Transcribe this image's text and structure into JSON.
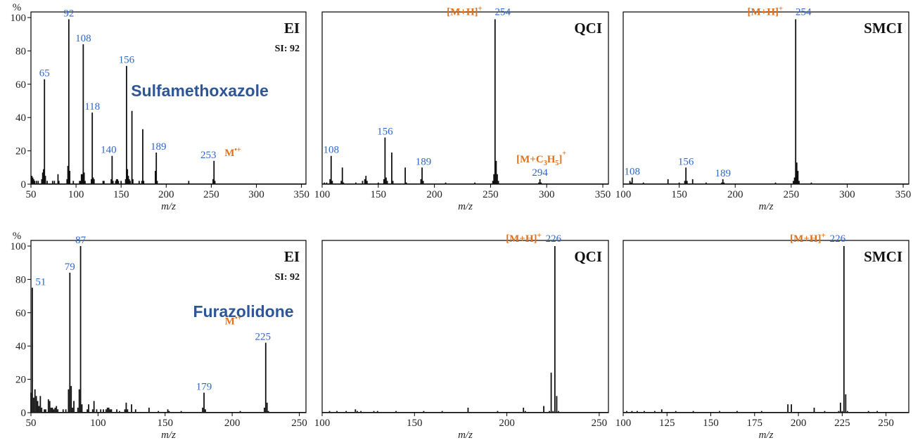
{
  "colors": {
    "peak_label": "#2f66c9",
    "annotation": "#e0701b",
    "compound": "#2e5596",
    "bar": "#111111"
  },
  "chart_data": [
    {
      "type": "bar",
      "compound": "Sulfamethoxazole",
      "mode": "EI",
      "si": "SI: 92",
      "xlabel": "m/z",
      "ylabel": "%",
      "xlim": [
        50,
        355
      ],
      "ylim": [
        0,
        100
      ],
      "xticks": [
        50,
        100,
        150,
        200,
        250,
        300,
        350
      ],
      "yticks": [
        0,
        20,
        40,
        60,
        80,
        100
      ],
      "peaks": [
        [
          51,
          5
        ],
        [
          52,
          4
        ],
        [
          53,
          3
        ],
        [
          54,
          2
        ],
        [
          56,
          2
        ],
        [
          58,
          2
        ],
        [
          62,
          3
        ],
        [
          63,
          7
        ],
        [
          64,
          9
        ],
        [
          65,
          63
        ],
        [
          66,
          5
        ],
        [
          68,
          2
        ],
        [
          74,
          2
        ],
        [
          76,
          2
        ],
        [
          80,
          6
        ],
        [
          81,
          2
        ],
        [
          90,
          3
        ],
        [
          91,
          11
        ],
        [
          92,
          99
        ],
        [
          93,
          8
        ],
        [
          97,
          2
        ],
        [
          104,
          2
        ],
        [
          105,
          2
        ],
        [
          106,
          6
        ],
        [
          107,
          6
        ],
        [
          108,
          84
        ],
        [
          109,
          7
        ],
        [
          110,
          2
        ],
        [
          117,
          3
        ],
        [
          118,
          43
        ],
        [
          119,
          4
        ],
        [
          120,
          3
        ],
        [
          130,
          2
        ],
        [
          131,
          2
        ],
        [
          139,
          3
        ],
        [
          140,
          17
        ],
        [
          141,
          2
        ],
        [
          144,
          2
        ],
        [
          145,
          3
        ],
        [
          146,
          3
        ],
        [
          147,
          2
        ],
        [
          150,
          2
        ],
        [
          155,
          3
        ],
        [
          156,
          71
        ],
        [
          157,
          9
        ],
        [
          158,
          5
        ],
        [
          159,
          3
        ],
        [
          160,
          2
        ],
        [
          162,
          44
        ],
        [
          163,
          3
        ],
        [
          170,
          2
        ],
        [
          173,
          2
        ],
        [
          174,
          33
        ],
        [
          175,
          2
        ],
        [
          188,
          8
        ],
        [
          189,
          19
        ],
        [
          190,
          2
        ],
        [
          225,
          2
        ],
        [
          252,
          3
        ],
        [
          253,
          14
        ],
        [
          254,
          2
        ]
      ],
      "labels": [
        {
          "x": 65,
          "t": "65"
        },
        {
          "x": 92,
          "t": "92"
        },
        {
          "x": 108,
          "t": "108"
        },
        {
          "x": 118,
          "t": "118"
        },
        {
          "x": 140,
          "t": "140"
        },
        {
          "x": 156,
          "t": "156"
        },
        {
          "x": 189,
          "t": "189"
        },
        {
          "x": 253,
          "t": "253"
        }
      ],
      "annotations": [
        "M",
        "•+"
      ]
    },
    {
      "type": "bar",
      "mode": "QCI",
      "xlabel": "m/z",
      "xlim": [
        100,
        355
      ],
      "ylim": [
        0,
        100
      ],
      "xticks": [
        100,
        150,
        200,
        250,
        300,
        350
      ],
      "peaks": [
        [
          102,
          1
        ],
        [
          104,
          1
        ],
        [
          107,
          3
        ],
        [
          108,
          17
        ],
        [
          109,
          2
        ],
        [
          117,
          2
        ],
        [
          118,
          10
        ],
        [
          119,
          1
        ],
        [
          130,
          1
        ],
        [
          136,
          2
        ],
        [
          138,
          3
        ],
        [
          139,
          5
        ],
        [
          140,
          2
        ],
        [
          150,
          1
        ],
        [
          155,
          3
        ],
        [
          156,
          28
        ],
        [
          157,
          4
        ],
        [
          158,
          2
        ],
        [
          162,
          19
        ],
        [
          163,
          2
        ],
        [
          174,
          10
        ],
        [
          175,
          1
        ],
        [
          188,
          3
        ],
        [
          189,
          10
        ],
        [
          190,
          2
        ],
        [
          210,
          1
        ],
        [
          236,
          1
        ],
        [
          252,
          2
        ],
        [
          253,
          6
        ],
        [
          254,
          99
        ],
        [
          255,
          14
        ],
        [
          256,
          6
        ],
        [
          257,
          2
        ],
        [
          293,
          1
        ],
        [
          294,
          3
        ],
        [
          295,
          1
        ]
      ],
      "labels": [
        {
          "x": 108,
          "t": "108"
        },
        {
          "x": 156,
          "t": "156"
        },
        {
          "x": 189,
          "t": "189"
        },
        {
          "x": 254,
          "t": "254"
        },
        {
          "x": 294,
          "t": "294"
        }
      ],
      "annotations": [
        "[M+H]",
        "+",
        "[M+C",
        "3",
        "H",
        "5",
        "]",
        "+"
      ]
    },
    {
      "type": "bar",
      "mode": "SMCI",
      "xlabel": "m/z",
      "xlim": [
        100,
        355
      ],
      "ylim": [
        0,
        100
      ],
      "xticks": [
        100,
        150,
        200,
        250,
        300,
        350
      ],
      "peaks": [
        [
          106,
          2
        ],
        [
          107,
          1
        ],
        [
          108,
          4
        ],
        [
          118,
          1
        ],
        [
          140,
          3
        ],
        [
          150,
          1
        ],
        [
          155,
          2
        ],
        [
          156,
          10
        ],
        [
          157,
          2
        ],
        [
          162,
          3
        ],
        [
          174,
          1
        ],
        [
          188,
          1
        ],
        [
          189,
          3
        ],
        [
          190,
          1
        ],
        [
          236,
          1
        ],
        [
          252,
          2
        ],
        [
          253,
          4
        ],
        [
          254,
          99
        ],
        [
          255,
          13
        ],
        [
          256,
          8
        ],
        [
          257,
          2
        ],
        [
          268,
          1
        ]
      ],
      "labels": [
        {
          "x": 108,
          "t": "108"
        },
        {
          "x": 156,
          "t": "156"
        },
        {
          "x": 189,
          "t": "189"
        },
        {
          "x": 254,
          "t": "254"
        }
      ],
      "annotations": [
        "[M+H]",
        "+"
      ]
    },
    {
      "type": "bar",
      "compound": "Furazolidone",
      "mode": "EI",
      "si": "SI: 92",
      "xlabel": "m/z",
      "ylabel": "%",
      "xlim": [
        50,
        255
      ],
      "ylim": [
        0,
        100
      ],
      "xticks": [
        50,
        100,
        150,
        200,
        250
      ],
      "yticks": [
        0,
        20,
        40,
        60,
        80,
        100
      ],
      "peaks": [
        [
          50,
          12
        ],
        [
          51,
          75
        ],
        [
          52,
          9
        ],
        [
          53,
          14
        ],
        [
          54,
          10
        ],
        [
          55,
          7
        ],
        [
          56,
          4
        ],
        [
          57,
          10
        ],
        [
          58,
          3
        ],
        [
          60,
          2
        ],
        [
          61,
          2
        ],
        [
          63,
          8
        ],
        [
          64,
          7
        ],
        [
          65,
          3
        ],
        [
          66,
          3
        ],
        [
          67,
          2
        ],
        [
          68,
          3
        ],
        [
          69,
          4
        ],
        [
          70,
          2
        ],
        [
          74,
          2
        ],
        [
          76,
          2
        ],
        [
          78,
          14
        ],
        [
          79,
          84
        ],
        [
          80,
          16
        ],
        [
          81,
          3
        ],
        [
          82,
          7
        ],
        [
          85,
          3
        ],
        [
          86,
          14
        ],
        [
          87,
          100
        ],
        [
          88,
          5
        ],
        [
          92,
          2
        ],
        [
          93,
          5
        ],
        [
          96,
          2
        ],
        [
          97,
          7
        ],
        [
          99,
          2
        ],
        [
          102,
          2
        ],
        [
          104,
          2
        ],
        [
          106,
          2
        ],
        [
          107,
          3
        ],
        [
          108,
          3
        ],
        [
          109,
          2
        ],
        [
          110,
          2
        ],
        [
          114,
          2
        ],
        [
          116,
          1
        ],
        [
          120,
          2
        ],
        [
          121,
          6
        ],
        [
          122,
          2
        ],
        [
          125,
          5
        ],
        [
          128,
          2
        ],
        [
          138,
          3
        ],
        [
          145,
          1
        ],
        [
          152,
          2
        ],
        [
          153,
          1
        ],
        [
          162,
          1
        ],
        [
          178,
          3
        ],
        [
          179,
          12
        ],
        [
          180,
          2
        ],
        [
          206,
          1
        ],
        [
          224,
          3
        ],
        [
          225,
          42
        ],
        [
          226,
          6
        ],
        [
          227,
          1
        ]
      ],
      "labels": [
        {
          "x": 51,
          "t": "51"
        },
        {
          "x": 79,
          "t": "79"
        },
        {
          "x": 87,
          "t": "87"
        },
        {
          "x": 179,
          "t": "179"
        },
        {
          "x": 225,
          "t": "225"
        }
      ],
      "annotations": [
        "M",
        "•+"
      ]
    },
    {
      "type": "bar",
      "mode": "QCI",
      "xlabel": "m/z",
      "xlim": [
        100,
        255
      ],
      "ylim": [
        0,
        100
      ],
      "xticks": [
        100,
        150,
        200,
        250
      ],
      "peaks": [
        [
          104,
          1
        ],
        [
          108,
          1
        ],
        [
          113,
          1
        ],
        [
          118,
          2
        ],
        [
          119,
          1
        ],
        [
          121,
          1
        ],
        [
          128,
          1
        ],
        [
          130,
          1
        ],
        [
          140,
          1
        ],
        [
          155,
          1
        ],
        [
          165,
          1
        ],
        [
          179,
          3
        ],
        [
          195,
          1
        ],
        [
          209,
          3
        ],
        [
          210,
          1
        ],
        [
          220,
          4
        ],
        [
          223,
          1
        ],
        [
          224,
          24
        ],
        [
          225,
          1
        ],
        [
          226,
          100
        ],
        [
          227,
          10
        ],
        [
          228,
          1
        ]
      ],
      "labels": [
        {
          "x": 226,
          "t": "226"
        }
      ],
      "annotations": [
        "[M+H]",
        "+"
      ]
    },
    {
      "type": "bar",
      "mode": "SMCI",
      "xlabel": "m/z",
      "xlim": [
        100,
        263
      ],
      "ylim": [
        0,
        100
      ],
      "xticks": [
        100,
        125,
        150,
        175,
        200,
        225,
        250
      ],
      "peaks": [
        [
          102,
          1
        ],
        [
          105,
          1
        ],
        [
          108,
          1
        ],
        [
          112,
          1
        ],
        [
          118,
          1
        ],
        [
          122,
          2
        ],
        [
          130,
          1
        ],
        [
          140,
          1
        ],
        [
          155,
          1
        ],
        [
          165,
          1
        ],
        [
          179,
          1
        ],
        [
          194,
          5
        ],
        [
          196,
          5
        ],
        [
          209,
          3
        ],
        [
          215,
          1
        ],
        [
          223,
          1
        ],
        [
          224,
          6
        ],
        [
          225,
          1
        ],
        [
          226,
          100
        ],
        [
          227,
          11
        ],
        [
          228,
          1
        ],
        [
          240,
          1
        ],
        [
          245,
          1
        ]
      ],
      "labels": [
        {
          "x": 226,
          "t": "226"
        }
      ],
      "annotations": [
        "[M+H]",
        "+"
      ]
    }
  ]
}
